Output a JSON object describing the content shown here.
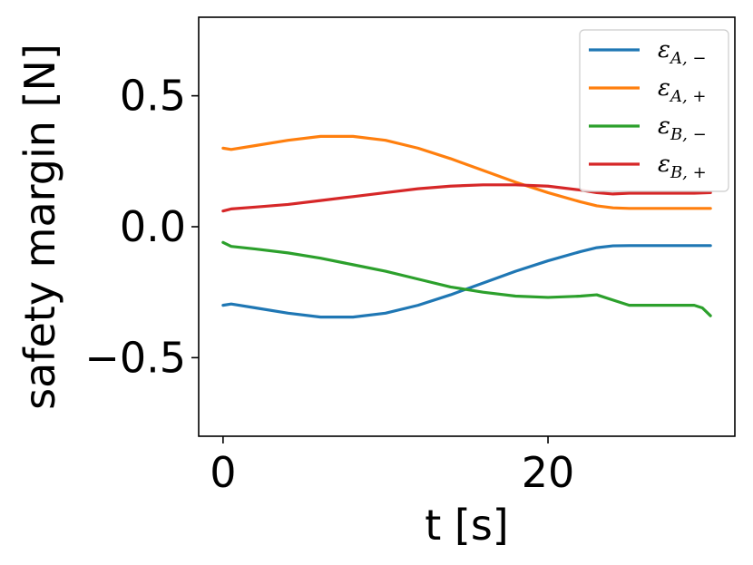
{
  "chart_data": {
    "type": "line",
    "xlabel": "t [s]",
    "ylabel": "safety margin [N]",
    "xlim": [
      -1.5,
      31.5
    ],
    "ylim": [
      -0.8,
      0.8
    ],
    "xticks": [
      0,
      20
    ],
    "xtick_labels": [
      "0",
      "20"
    ],
    "yticks": [
      -0.5,
      0.0,
      0.5
    ],
    "ytick_labels": [
      "−0.5",
      "0.0",
      "0.5"
    ],
    "grid": false,
    "legend_position": "top-right",
    "series": [
      {
        "name": "εA, −",
        "legend_main": "ε",
        "legend_sub": "A, −",
        "color": "#1f77b4",
        "x": [
          0,
          0.5,
          2,
          4,
          6,
          8,
          10,
          12,
          14,
          16,
          18,
          20,
          22,
          23,
          24,
          25,
          26,
          27,
          28,
          29,
          30
        ],
        "y": [
          -0.3,
          -0.295,
          -0.31,
          -0.33,
          -0.345,
          -0.345,
          -0.33,
          -0.3,
          -0.26,
          -0.215,
          -0.17,
          -0.13,
          -0.095,
          -0.08,
          -0.073,
          -0.072,
          -0.072,
          -0.072,
          -0.072,
          -0.072,
          -0.072
        ]
      },
      {
        "name": "εA, +",
        "legend_main": "ε",
        "legend_sub": "A, +",
        "color": "#ff7f0e",
        "x": [
          0,
          0.5,
          2,
          4,
          6,
          8,
          10,
          12,
          14,
          16,
          18,
          20,
          22,
          23,
          24,
          25,
          26,
          27,
          28,
          29,
          30
        ],
        "y": [
          0.3,
          0.295,
          0.31,
          0.33,
          0.345,
          0.345,
          0.33,
          0.3,
          0.26,
          0.215,
          0.17,
          0.13,
          0.095,
          0.08,
          0.072,
          0.07,
          0.07,
          0.07,
          0.07,
          0.07,
          0.07
        ]
      },
      {
        "name": "εB, −",
        "legend_main": "ε",
        "legend_sub": "B, −",
        "color": "#2ca02c",
        "x": [
          0,
          0.5,
          2,
          4,
          6,
          8,
          10,
          12,
          14,
          16,
          18,
          20,
          22,
          23,
          24,
          25,
          26,
          27,
          28,
          29,
          29.5,
          30
        ],
        "y": [
          -0.06,
          -0.075,
          -0.085,
          -0.1,
          -0.12,
          -0.145,
          -0.17,
          -0.2,
          -0.23,
          -0.25,
          -0.265,
          -0.27,
          -0.265,
          -0.26,
          -0.28,
          -0.3,
          -0.3,
          -0.3,
          -0.3,
          -0.3,
          -0.31,
          -0.34
        ]
      },
      {
        "name": "εB, +",
        "legend_main": "ε",
        "legend_sub": "B, +",
        "color": "#d62728",
        "x": [
          0,
          0.5,
          2,
          4,
          6,
          8,
          10,
          12,
          14,
          16,
          18,
          20,
          22,
          23,
          24,
          25,
          26,
          27,
          28,
          29,
          30
        ],
        "y": [
          0.06,
          0.068,
          0.075,
          0.085,
          0.1,
          0.115,
          0.13,
          0.145,
          0.155,
          0.16,
          0.16,
          0.155,
          0.14,
          0.13,
          0.125,
          0.128,
          0.128,
          0.128,
          0.128,
          0.128,
          0.13
        ]
      }
    ]
  }
}
